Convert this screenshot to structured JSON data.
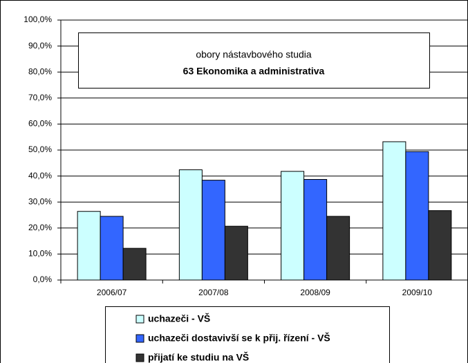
{
  "chart_data": {
    "type": "bar",
    "title": "obory nástavbového studia",
    "subtitle": "63 Ekonomika a administrativa",
    "categories": [
      "2006/07",
      "2007/08",
      "2008/09",
      "2009/10"
    ],
    "series": [
      {
        "name": "uchazeči - VŠ",
        "color": "#ccffff",
        "values": [
          26.4,
          42.4,
          41.8,
          53.2
        ]
      },
      {
        "name": "uchazeči dostavivší se k přij. řízení - VŠ",
        "color": "#3366ff",
        "values": [
          24.5,
          38.4,
          38.7,
          49.4
        ]
      },
      {
        "name": "přijatí ke studiu na VŠ",
        "color": "#333333",
        "values": [
          12.2,
          20.7,
          24.5,
          26.7
        ]
      }
    ],
    "ylim": [
      0,
      100
    ],
    "yticks": [
      {
        "value": 0,
        "label": "0,0%"
      },
      {
        "value": 10,
        "label": "10,0%"
      },
      {
        "value": 20,
        "label": "20,0%"
      },
      {
        "value": 30,
        "label": "30,0%"
      },
      {
        "value": 40,
        "label": "40,0%"
      },
      {
        "value": 50,
        "label": "50,0%"
      },
      {
        "value": 60,
        "label": "60,0%"
      },
      {
        "value": 70,
        "label": "70,0%"
      },
      {
        "value": 80,
        "label": "80,0%"
      },
      {
        "value": 90,
        "label": "90,0%"
      },
      {
        "value": 100,
        "label": "100,0%"
      }
    ],
    "grid": true
  }
}
